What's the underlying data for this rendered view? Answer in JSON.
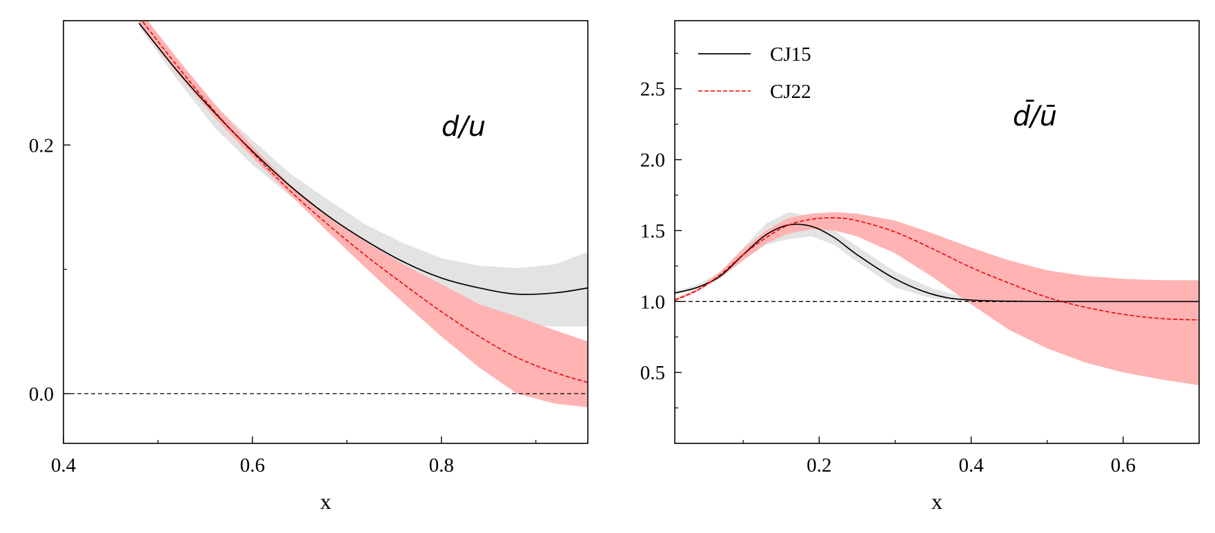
{
  "colors": {
    "cj15_line": "#000000",
    "cj15_band": "#e3e3e3",
    "cj22_line": "#ee0000",
    "cj22_band": "#ffb3b3",
    "reference_line": "#000000"
  },
  "legend": {
    "cj15": "CJ15",
    "cj22": "CJ22"
  },
  "chart_data": [
    {
      "type": "line",
      "title": "",
      "annotation": "d/u",
      "xlabel": "x",
      "ylabel": "",
      "xlim": [
        0.4,
        0.955
      ],
      "ylim": [
        -0.04,
        0.3
      ],
      "xticks": [
        "0.4",
        "0.6",
        "0.8"
      ],
      "yticks": [
        "0.0",
        "0.2"
      ],
      "reference_y": 0.0,
      "grid": false,
      "series": [
        {
          "name": "CJ15",
          "style": "solid",
          "x": [
            0.48,
            0.52,
            0.56,
            0.6,
            0.64,
            0.68,
            0.72,
            0.76,
            0.8,
            0.84,
            0.88,
            0.92,
            0.955
          ],
          "values": [
            0.298,
            0.26,
            0.226,
            0.195,
            0.167,
            0.143,
            0.123,
            0.106,
            0.093,
            0.085,
            0.08,
            0.081,
            0.085
          ],
          "band_low": [
            0.295,
            0.253,
            0.214,
            0.184,
            0.159,
            0.135,
            0.113,
            0.093,
            0.075,
            0.061,
            0.055,
            0.054,
            0.054
          ],
          "band_high": [
            0.301,
            0.265,
            0.232,
            0.204,
            0.177,
            0.156,
            0.136,
            0.121,
            0.109,
            0.103,
            0.101,
            0.104,
            0.114
          ]
        },
        {
          "name": "CJ22",
          "style": "dashed",
          "x": [
            0.48,
            0.52,
            0.56,
            0.6,
            0.64,
            0.68,
            0.72,
            0.76,
            0.8,
            0.84,
            0.88,
            0.92,
            0.955
          ],
          "values": [
            0.303,
            0.264,
            0.227,
            0.194,
            0.163,
            0.136,
            0.111,
            0.088,
            0.066,
            0.046,
            0.029,
            0.017,
            0.009
          ],
          "band_low": [
            0.297,
            0.258,
            0.222,
            0.19,
            0.16,
            0.13,
            0.101,
            0.073,
            0.046,
            0.021,
            0.0,
            -0.008,
            -0.011
          ],
          "band_high": [
            0.309,
            0.27,
            0.233,
            0.199,
            0.168,
            0.143,
            0.122,
            0.104,
            0.088,
            0.072,
            0.062,
            0.051,
            0.042
          ]
        }
      ]
    },
    {
      "type": "line",
      "title": "",
      "annotation": "d̄/ū",
      "xlabel": "x",
      "ylabel": "",
      "xlim": [
        0.01,
        0.7
      ],
      "ylim": [
        0.0,
        2.98
      ],
      "xticks": [
        "0.2",
        "0.4",
        "0.6"
      ],
      "yticks": [
        "0.5",
        "1.0",
        "1.5",
        "2.0",
        "2.5"
      ],
      "reference_y": 1.0,
      "grid": false,
      "legend_position": "upper-left",
      "series": [
        {
          "name": "CJ15",
          "style": "solid",
          "x": [
            0.01,
            0.04,
            0.07,
            0.1,
            0.13,
            0.16,
            0.19,
            0.22,
            0.25,
            0.3,
            0.35,
            0.4,
            0.5,
            0.6,
            0.7
          ],
          "values": [
            1.06,
            1.1,
            1.18,
            1.33,
            1.47,
            1.54,
            1.53,
            1.45,
            1.33,
            1.16,
            1.05,
            1.01,
            1.0,
            1.0,
            1.0
          ],
          "band_low": [
            1.05,
            1.09,
            1.16,
            1.29,
            1.4,
            1.44,
            1.46,
            1.4,
            1.28,
            1.1,
            1.02,
            1.0,
            1.0,
            1.0,
            1.0
          ],
          "band_high": [
            1.07,
            1.12,
            1.21,
            1.38,
            1.55,
            1.63,
            1.6,
            1.5,
            1.39,
            1.21,
            1.09,
            1.02,
            1.0,
            1.0,
            1.0
          ]
        },
        {
          "name": "CJ22",
          "style": "dashed",
          "x": [
            0.01,
            0.04,
            0.07,
            0.1,
            0.13,
            0.16,
            0.19,
            0.22,
            0.25,
            0.3,
            0.35,
            0.4,
            0.45,
            0.5,
            0.55,
            0.6,
            0.65,
            0.7
          ],
          "values": [
            1.01,
            1.08,
            1.19,
            1.33,
            1.45,
            1.54,
            1.58,
            1.59,
            1.57,
            1.49,
            1.37,
            1.24,
            1.13,
            1.03,
            0.96,
            0.91,
            0.88,
            0.87
          ],
          "band_low": [
            1.0,
            1.07,
            1.17,
            1.29,
            1.41,
            1.48,
            1.51,
            1.5,
            1.46,
            1.34,
            1.17,
            0.98,
            0.8,
            0.67,
            0.57,
            0.5,
            0.45,
            0.41
          ],
          "band_high": [
            1.02,
            1.09,
            1.21,
            1.37,
            1.5,
            1.59,
            1.62,
            1.63,
            1.62,
            1.57,
            1.48,
            1.38,
            1.29,
            1.22,
            1.18,
            1.16,
            1.15,
            1.15
          ]
        }
      ]
    }
  ]
}
